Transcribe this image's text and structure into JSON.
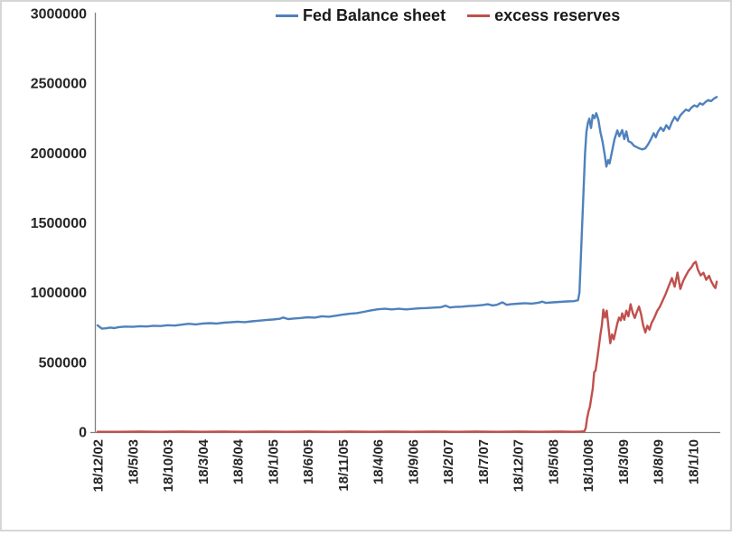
{
  "window": {
    "background": "#ffffff",
    "border_color": "#d6d6d6"
  },
  "chart_data": {
    "type": "line",
    "title": "",
    "grid": "off",
    "legend_position": "top-center",
    "axis_color": "#808080",
    "text_color": "#262626",
    "x_axis": {
      "unit": "date (18th of month, d/m/yy), ticks every 5 months",
      "tick_labels": [
        "18/12/02",
        "18/5/03",
        "18/10/03",
        "18/3/04",
        "18/8/04",
        "18/1/05",
        "18/6/05",
        "18/11/05",
        "18/4/06",
        "18/9/06",
        "18/2/07",
        "18/7/07",
        "18/12/07",
        "18/5/08",
        "18/10/08",
        "18/3/09",
        "18/8/09",
        "18/1/10"
      ],
      "tick_positions_months": [
        0,
        5,
        10,
        15,
        20,
        25,
        30,
        35,
        40,
        45,
        50,
        55,
        60,
        65,
        70,
        75,
        80,
        85
      ]
    },
    "y_axis": {
      "min": 0,
      "max": 3000000,
      "step": 500000,
      "tick_labels": [
        "0",
        "500000",
        "1000000",
        "1500000",
        "2000000",
        "2500000",
        "3000000"
      ]
    },
    "series": [
      {
        "name": "Fed Balance sheet",
        "color": "#4F81BD",
        "points_x_unit": "months since 18/12/02",
        "points": [
          [
            0,
            765000
          ],
          [
            0.6,
            741000
          ],
          [
            1.2,
            744000
          ],
          [
            1.8,
            749000
          ],
          [
            2.4,
            745000
          ],
          [
            3,
            752000
          ],
          [
            4,
            756000
          ],
          [
            5,
            754000
          ],
          [
            6,
            759000
          ],
          [
            7,
            757000
          ],
          [
            8,
            762000
          ],
          [
            9,
            760000
          ],
          [
            10,
            766000
          ],
          [
            11,
            763000
          ],
          [
            12,
            770000
          ],
          [
            13,
            776000
          ],
          [
            14,
            772000
          ],
          [
            15,
            778000
          ],
          [
            16,
            781000
          ],
          [
            17,
            778000
          ],
          [
            18,
            784000
          ],
          [
            19,
            787000
          ],
          [
            20,
            791000
          ],
          [
            21,
            788000
          ],
          [
            22,
            794000
          ],
          [
            23,
            798000
          ],
          [
            24,
            803000
          ],
          [
            25,
            807000
          ],
          [
            26,
            812000
          ],
          [
            26.5,
            821000
          ],
          [
            27.2,
            810000
          ],
          [
            28,
            814000
          ],
          [
            29,
            818000
          ],
          [
            30,
            823000
          ],
          [
            31,
            820000
          ],
          [
            32,
            830000
          ],
          [
            33,
            827000
          ],
          [
            34,
            834000
          ],
          [
            35,
            842000
          ],
          [
            36,
            848000
          ],
          [
            37,
            853000
          ],
          [
            38,
            862000
          ],
          [
            39,
            872000
          ],
          [
            40,
            880000
          ],
          [
            41,
            884000
          ],
          [
            42,
            879000
          ],
          [
            43,
            884000
          ],
          [
            44,
            879000
          ],
          [
            45,
            883000
          ],
          [
            46,
            887000
          ],
          [
            47,
            889000
          ],
          [
            48,
            892000
          ],
          [
            49,
            895000
          ],
          [
            49.7,
            906000
          ],
          [
            50.3,
            893000
          ],
          [
            51,
            897000
          ],
          [
            52,
            899000
          ],
          [
            53,
            903000
          ],
          [
            54,
            906000
          ],
          [
            55,
            911000
          ],
          [
            55.7,
            916000
          ],
          [
            56.4,
            908000
          ],
          [
            57,
            912000
          ],
          [
            57.8,
            930000
          ],
          [
            58.4,
            912000
          ],
          [
            59,
            916000
          ],
          [
            60,
            920000
          ],
          [
            61,
            924000
          ],
          [
            62,
            921000
          ],
          [
            63,
            928000
          ],
          [
            63.5,
            935000
          ],
          [
            64,
            926000
          ],
          [
            65,
            930000
          ],
          [
            66,
            933000
          ],
          [
            67,
            936000
          ],
          [
            68,
            938000
          ],
          [
            68.3,
            942000
          ],
          [
            68.6,
            945000
          ],
          [
            68.8,
            1000000
          ],
          [
            69.2,
            1500000
          ],
          [
            69.6,
            2000000
          ],
          [
            69.8,
            2150000
          ],
          [
            70,
            2214000
          ],
          [
            70.2,
            2247000
          ],
          [
            70.45,
            2180000
          ],
          [
            70.7,
            2273000
          ],
          [
            70.95,
            2250000
          ],
          [
            71.2,
            2286000
          ],
          [
            71.5,
            2240000
          ],
          [
            71.8,
            2150000
          ],
          [
            72.1,
            2080000
          ],
          [
            72.4,
            1990000
          ],
          [
            72.65,
            1903000
          ],
          [
            72.9,
            1950000
          ],
          [
            73.1,
            1925000
          ],
          [
            73.4,
            2000000
          ],
          [
            73.8,
            2097000
          ],
          [
            74.2,
            2162000
          ],
          [
            74.5,
            2120000
          ],
          [
            74.9,
            2165000
          ],
          [
            75.2,
            2100000
          ],
          [
            75.5,
            2155000
          ],
          [
            75.8,
            2085000
          ],
          [
            76.2,
            2075000
          ],
          [
            76.6,
            2052000
          ],
          [
            77,
            2042000
          ],
          [
            77.4,
            2032000
          ],
          [
            77.8,
            2026000
          ],
          [
            78.2,
            2034000
          ],
          [
            78.6,
            2062000
          ],
          [
            79,
            2100000
          ],
          [
            79.4,
            2142000
          ],
          [
            79.7,
            2112000
          ],
          [
            80,
            2152000
          ],
          [
            80.4,
            2182000
          ],
          [
            80.8,
            2158000
          ],
          [
            81.2,
            2200000
          ],
          [
            81.6,
            2172000
          ],
          [
            82,
            2222000
          ],
          [
            82.4,
            2259000
          ],
          [
            82.8,
            2232000
          ],
          [
            83.2,
            2270000
          ],
          [
            83.6,
            2292000
          ],
          [
            84,
            2312000
          ],
          [
            84.4,
            2302000
          ],
          [
            84.8,
            2326000
          ],
          [
            85.2,
            2342000
          ],
          [
            85.6,
            2332000
          ],
          [
            86,
            2357000
          ],
          [
            86.4,
            2347000
          ],
          [
            86.8,
            2366000
          ],
          [
            87.2,
            2380000
          ],
          [
            87.6,
            2372000
          ],
          [
            88,
            2390000
          ],
          [
            88.4,
            2402000
          ]
        ]
      },
      {
        "name": "excess reserves",
        "color": "#C0504D",
        "points_x_unit": "months since 18/12/02",
        "points": [
          [
            0,
            2000
          ],
          [
            3,
            2000
          ],
          [
            6,
            3000
          ],
          [
            9,
            2000
          ],
          [
            12,
            3000
          ],
          [
            15,
            2000
          ],
          [
            18,
            3000
          ],
          [
            21,
            2000
          ],
          [
            24,
            3000
          ],
          [
            27,
            2000
          ],
          [
            30,
            3000
          ],
          [
            33,
            2000
          ],
          [
            36,
            3000
          ],
          [
            39,
            2000
          ],
          [
            42,
            3000
          ],
          [
            45,
            2000
          ],
          [
            48,
            3000
          ],
          [
            51,
            2000
          ],
          [
            54,
            3000
          ],
          [
            57,
            2000
          ],
          [
            60,
            3000
          ],
          [
            63,
            2000
          ],
          [
            66,
            3000
          ],
          [
            68,
            2000
          ],
          [
            69,
            3000
          ],
          [
            69.5,
            5000
          ],
          [
            69.7,
            30000
          ],
          [
            69.9,
            100000
          ],
          [
            70.1,
            149000
          ],
          [
            70.3,
            182000
          ],
          [
            70.5,
            250000
          ],
          [
            70.7,
            310000
          ],
          [
            70.9,
            430000
          ],
          [
            71.1,
            440000
          ],
          [
            71.35,
            530000
          ],
          [
            71.6,
            623000
          ],
          [
            71.8,
            700000
          ],
          [
            72,
            766000
          ],
          [
            72.2,
            877000
          ],
          [
            72.45,
            820000
          ],
          [
            72.7,
            870000
          ],
          [
            72.95,
            750000
          ],
          [
            73.2,
            636000
          ],
          [
            73.45,
            700000
          ],
          [
            73.7,
            665000
          ],
          [
            73.95,
            720000
          ],
          [
            74.2,
            779000
          ],
          [
            74.45,
            820000
          ],
          [
            74.7,
            800000
          ],
          [
            74.9,
            851000
          ],
          [
            75.2,
            805000
          ],
          [
            75.5,
            870000
          ],
          [
            75.8,
            830000
          ],
          [
            76.1,
            916000
          ],
          [
            76.4,
            855000
          ],
          [
            76.7,
            818000
          ],
          [
            77,
            862000
          ],
          [
            77.3,
            900000
          ],
          [
            77.6,
            845000
          ],
          [
            77.9,
            765000
          ],
          [
            78.2,
            714000
          ],
          [
            78.5,
            762000
          ],
          [
            78.8,
            734000
          ],
          [
            79.1,
            782000
          ],
          [
            79.5,
            820000
          ],
          [
            79.9,
            868000
          ],
          [
            80.3,
            900000
          ],
          [
            80.7,
            945000
          ],
          [
            81.1,
            988000
          ],
          [
            81.5,
            1040000
          ],
          [
            82,
            1104000
          ],
          [
            82.4,
            1042000
          ],
          [
            82.8,
            1143000
          ],
          [
            83.2,
            1026000
          ],
          [
            83.6,
            1082000
          ],
          [
            84,
            1122000
          ],
          [
            84.4,
            1158000
          ],
          [
            84.8,
            1182000
          ],
          [
            85.1,
            1208000
          ],
          [
            85.4,
            1221000
          ],
          [
            85.7,
            1165000
          ],
          [
            86.1,
            1123000
          ],
          [
            86.5,
            1142000
          ],
          [
            86.9,
            1092000
          ],
          [
            87.3,
            1120000
          ],
          [
            87.6,
            1082000
          ],
          [
            88,
            1046000
          ],
          [
            88.2,
            1032000
          ],
          [
            88.4,
            1078000
          ]
        ]
      }
    ]
  }
}
